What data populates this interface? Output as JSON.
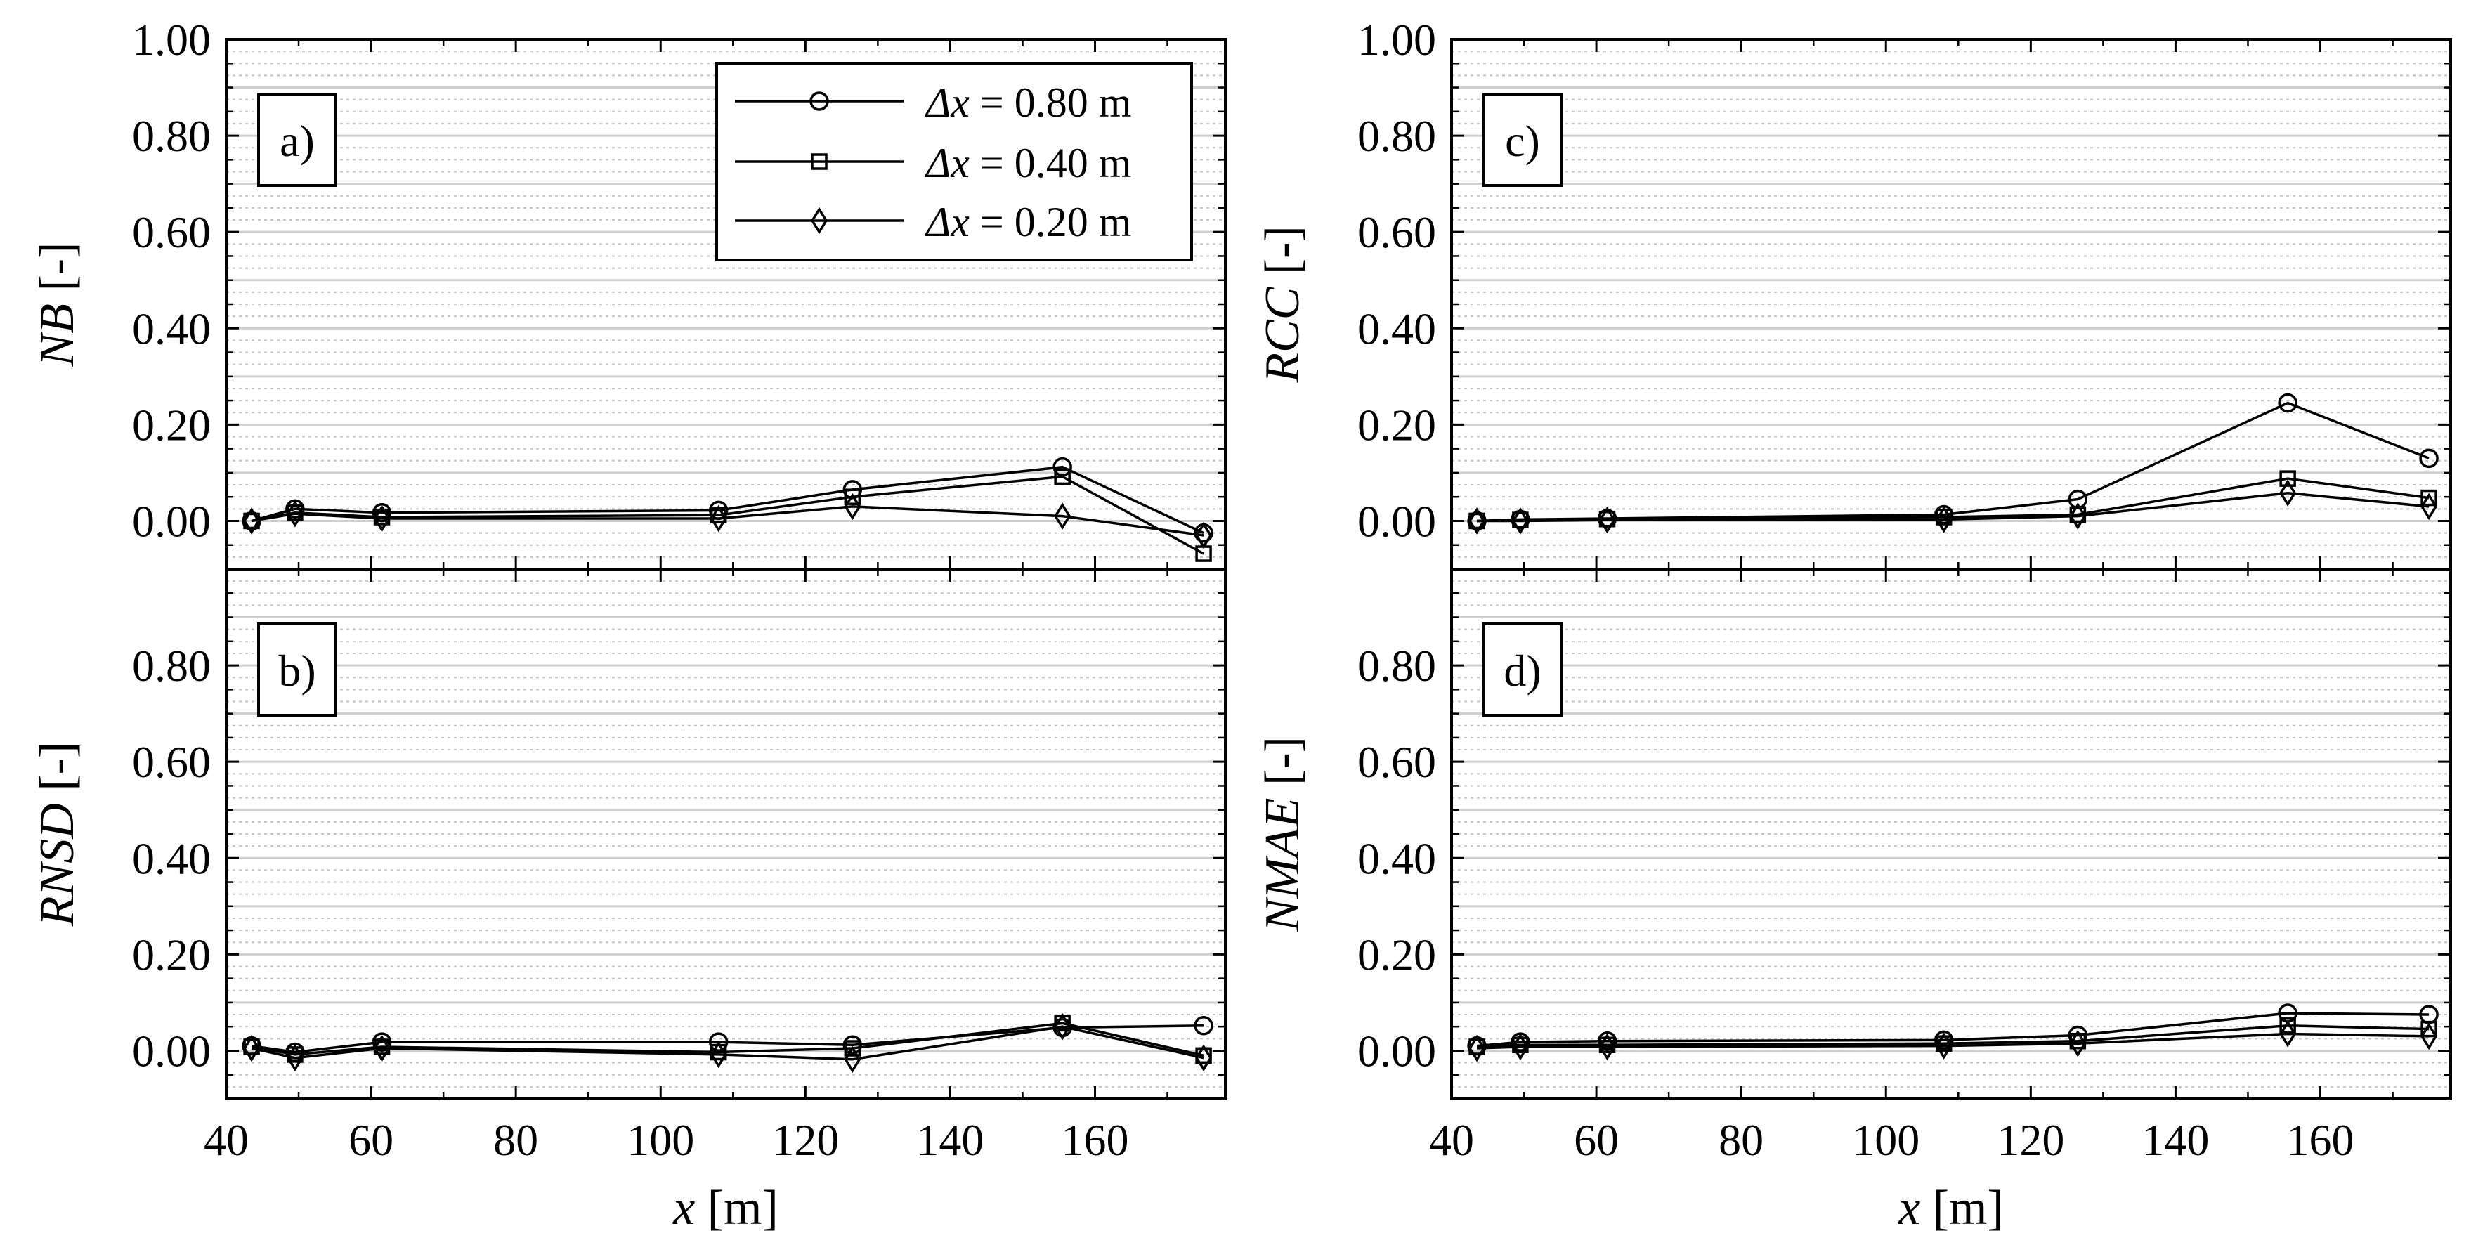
{
  "legend": {
    "entries": [
      {
        "delta": "Δ",
        "var": "x",
        "rest": " = 0.80 m",
        "marker": "circle"
      },
      {
        "delta": "Δ",
        "var": "x",
        "rest": " = 0.40 m",
        "marker": "square"
      },
      {
        "delta": "Δ",
        "var": "x",
        "rest": " = 0.20 m",
        "marker": "diamond"
      }
    ]
  },
  "xaxis": {
    "var": "x",
    "unit": " [m]",
    "range": [
      40,
      178
    ],
    "ticks": [
      40,
      60,
      80,
      100,
      120,
      140,
      160
    ],
    "tick_labels": [
      "40",
      "60",
      "80",
      "100",
      "120",
      "140",
      "160"
    ]
  },
  "chart_data": [
    {
      "type": "line",
      "id": "a",
      "panel_label": "a)",
      "ylabel_var": "NB",
      "ylabel_unit": " [-]",
      "ylim": [
        -0.1,
        1.0
      ],
      "yticks": [
        0,
        0.2,
        0.4,
        0.6,
        0.8,
        1.0
      ],
      "ytick_labels": [
        "0.00",
        "0.20",
        "0.40",
        "0.60",
        "0.80",
        "1.00"
      ],
      "x": [
        43.5,
        49.5,
        61.5,
        108,
        126.5,
        155.5,
        175
      ],
      "series": [
        {
          "name": "Δx = 0.80 m",
          "marker": "circle",
          "values": [
            0.0,
            0.025,
            0.017,
            0.022,
            0.065,
            0.112,
            -0.025
          ]
        },
        {
          "name": "Δx = 0.40 m",
          "marker": "square",
          "values": [
            0.0,
            0.017,
            0.008,
            0.012,
            0.05,
            0.092,
            -0.068
          ]
        },
        {
          "name": "Δx = 0.20 m",
          "marker": "diamond",
          "values": [
            0.0,
            0.015,
            0.005,
            0.005,
            0.03,
            0.01,
            -0.03
          ]
        }
      ]
    },
    {
      "type": "line",
      "id": "b",
      "panel_label": "b)",
      "ylabel_var": "RNSD",
      "ylabel_unit": " [-]",
      "ylim": [
        -0.1,
        1.0
      ],
      "yticks": [
        0,
        0.2,
        0.4,
        0.6,
        0.8
      ],
      "ytick_labels": [
        "0.00",
        "0.20",
        "0.40",
        "0.60",
        "0.80"
      ],
      "x": [
        43.5,
        49.5,
        61.5,
        108,
        126.5,
        155.5,
        175
      ],
      "series": [
        {
          "name": "Δx = 0.80 m",
          "marker": "circle",
          "values": [
            0.01,
            -0.003,
            0.018,
            0.018,
            0.012,
            0.048,
            0.052
          ]
        },
        {
          "name": "Δx = 0.40 m",
          "marker": "square",
          "values": [
            0.008,
            -0.008,
            0.008,
            -0.003,
            0.005,
            0.057,
            -0.01
          ]
        },
        {
          "name": "Δx = 0.20 m",
          "marker": "diamond",
          "values": [
            0.005,
            -0.015,
            0.005,
            -0.008,
            -0.018,
            0.05,
            -0.015
          ]
        }
      ]
    },
    {
      "type": "line",
      "id": "c",
      "panel_label": "c)",
      "ylabel_var": "RCC",
      "ylabel_unit": " [-]",
      "ylim": [
        -0.1,
        1.0
      ],
      "yticks": [
        0,
        0.2,
        0.4,
        0.6,
        0.8,
        1.0
      ],
      "ytick_labels": [
        "0.00",
        "0.20",
        "0.40",
        "0.60",
        "0.80",
        "1.00"
      ],
      "x": [
        43.5,
        49.5,
        61.5,
        108,
        126.5,
        155.5,
        175
      ],
      "series": [
        {
          "name": "Δx = 0.80 m",
          "marker": "circle",
          "values": [
            0.0,
            0.003,
            0.005,
            0.013,
            0.045,
            0.245,
            0.13
          ]
        },
        {
          "name": "Δx = 0.40 m",
          "marker": "square",
          "values": [
            0.0,
            0.002,
            0.004,
            0.008,
            0.013,
            0.088,
            0.048
          ]
        },
        {
          "name": "Δx = 0.20 m",
          "marker": "diamond",
          "values": [
            0.0,
            0.0,
            0.002,
            0.003,
            0.01,
            0.058,
            0.03
          ]
        }
      ]
    },
    {
      "type": "line",
      "id": "d",
      "panel_label": "d)",
      "ylabel_var": "NMAE",
      "ylabel_unit": " [-]",
      "ylim": [
        -0.1,
        1.0
      ],
      "yticks": [
        0,
        0.2,
        0.4,
        0.6,
        0.8
      ],
      "ytick_labels": [
        "0.00",
        "0.20",
        "0.40",
        "0.60",
        "0.80"
      ],
      "x": [
        43.5,
        49.5,
        61.5,
        108,
        126.5,
        155.5,
        175
      ],
      "series": [
        {
          "name": "Δx = 0.80 m",
          "marker": "circle",
          "values": [
            0.01,
            0.018,
            0.02,
            0.022,
            0.032,
            0.078,
            0.075
          ]
        },
        {
          "name": "Δx = 0.40 m",
          "marker": "square",
          "values": [
            0.008,
            0.012,
            0.012,
            0.015,
            0.02,
            0.052,
            0.045
          ]
        },
        {
          "name": "Δx = 0.20 m",
          "marker": "diamond",
          "values": [
            0.005,
            0.008,
            0.008,
            0.01,
            0.015,
            0.035,
            0.03
          ]
        }
      ]
    }
  ]
}
